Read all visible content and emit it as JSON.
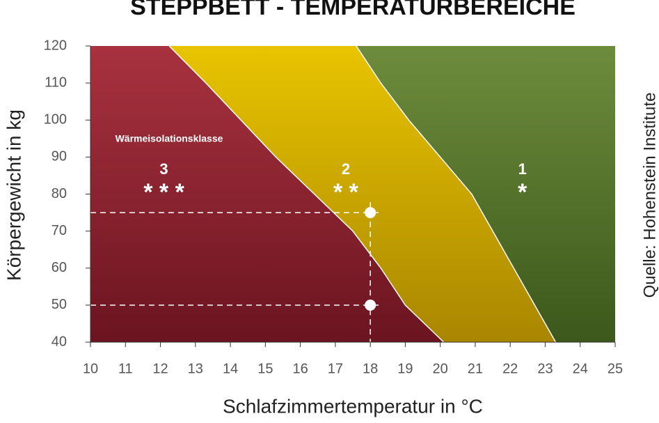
{
  "chart_data": {
    "type": "region",
    "title": "STEPPBETT - TEMPERATURBEREICHE",
    "x_label": "Schlafzimmertemperatur in °C",
    "y_label": "Körpergewicht in kg",
    "source": "Quelle: Hohenstein Institute",
    "annotation": "Wärmeisolationsklasse",
    "xlim": [
      10,
      25
    ],
    "ylim": [
      40,
      120
    ],
    "xticks": [
      10,
      11,
      12,
      13,
      14,
      15,
      16,
      17,
      18,
      19,
      20,
      21,
      22,
      23,
      24,
      25
    ],
    "yticks": [
      40,
      50,
      60,
      70,
      80,
      90,
      100,
      110,
      120
    ],
    "boundaries": [
      {
        "x": [
          12.25,
          13.3,
          14.3,
          15.3,
          16.4,
          17.5,
          18.3,
          19.0,
          20.1
        ],
        "y": [
          120,
          110,
          100,
          90,
          80,
          70,
          60,
          50,
          40
        ]
      },
      {
        "x": [
          17.6,
          18.3,
          19.1,
          20.0,
          20.9,
          21.5,
          22.1,
          22.7,
          23.3
        ],
        "y": [
          120,
          110,
          100,
          90,
          80,
          70,
          60,
          50,
          40
        ]
      }
    ],
    "regions": [
      {
        "label": "3",
        "stars": "* * *",
        "color": "#a8323f",
        "color_bottom": "#6b1420"
      },
      {
        "label": "2",
        "stars": "* *",
        "color": "#e8c400",
        "color_bottom": "#a98600"
      },
      {
        "label": "1",
        "stars": "*",
        "color": "#6e8c3c",
        "color_bottom": "#3c581b"
      }
    ],
    "points": {
      "x": [
        18,
        18
      ],
      "y": [
        75,
        50
      ],
      "color": "#ffffff"
    }
  }
}
